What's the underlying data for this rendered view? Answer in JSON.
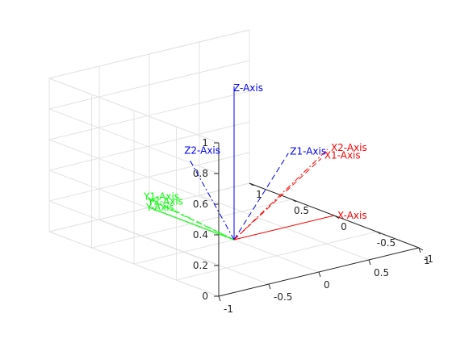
{
  "chart_data": {
    "type": "line",
    "title": "",
    "xlim": [
      -1,
      1
    ],
    "ylim": [
      -1,
      1
    ],
    "zlim": [
      0,
      1
    ],
    "grid": true,
    "view": "3d-perspective",
    "ticks": {
      "x": [
        "-1",
        "-0.5",
        "0",
        "0.5",
        "1"
      ],
      "y": [
        "-1",
        "-0.5",
        "0",
        "0.5",
        "1"
      ],
      "z": [
        "0",
        "0.2",
        "0.4",
        "0.6",
        "0.8",
        "1"
      ]
    },
    "series": [
      {
        "name": "X-Axis",
        "color": "#ff0000",
        "style": "solid",
        "label": "X-Axis",
        "x": [
          0,
          1
        ],
        "y": [
          0,
          0
        ],
        "z": [
          0,
          0
        ]
      },
      {
        "name": "Y-Axis",
        "color": "#00ff00",
        "style": "solid",
        "label": "Y-Axis",
        "x": [
          0,
          0
        ],
        "y": [
          0,
          1
        ],
        "z": [
          0,
          0
        ]
      },
      {
        "name": "Z-Axis",
        "color": "#0000ff",
        "style": "solid",
        "label": "Z-Axis",
        "x": [
          0,
          0
        ],
        "y": [
          0,
          0
        ],
        "z": [
          0,
          1
        ]
      },
      {
        "name": "X1-Axis",
        "color": "#ff0000",
        "style": "dashed",
        "label": "X1-Axis",
        "x": [
          0,
          0.26
        ],
        "y": [
          0,
          -0.72
        ],
        "z": [
          0,
          0.64
        ]
      },
      {
        "name": "Y1-Axis",
        "color": "#00ff00",
        "style": "dashed",
        "label": "Y1-Axis",
        "x": [
          0,
          -0.04
        ],
        "y": [
          0,
          0.98
        ],
        "z": [
          0,
          0.07
        ]
      },
      {
        "name": "Z1-Axis",
        "color": "#0000ff",
        "style": "dashed",
        "label": "Z1-Axis",
        "x": [
          0,
          -0.05
        ],
        "y": [
          0,
          -0.7
        ],
        "z": [
          0,
          0.72
        ]
      },
      {
        "name": "X2-Axis",
        "color": "#ff0000",
        "style": "dash-dot",
        "label": "X2-Axis",
        "x": [
          0,
          0.3
        ],
        "y": [
          0,
          -0.75
        ],
        "z": [
          0,
          0.7
        ]
      },
      {
        "name": "Y2-Axis",
        "color": "#00ff00",
        "style": "dash-dot",
        "label": "Y2-Axis",
        "x": [
          0,
          0
        ],
        "y": [
          0,
          1
        ],
        "z": [
          0,
          0.06
        ]
      },
      {
        "name": "Z2-Axis",
        "color": "#0000ff",
        "style": "dash-dot",
        "label": "Z2-Axis",
        "x": [
          0,
          -0.45
        ],
        "y": [
          0,
          0
        ],
        "z": [
          0,
          0.6
        ]
      }
    ]
  }
}
